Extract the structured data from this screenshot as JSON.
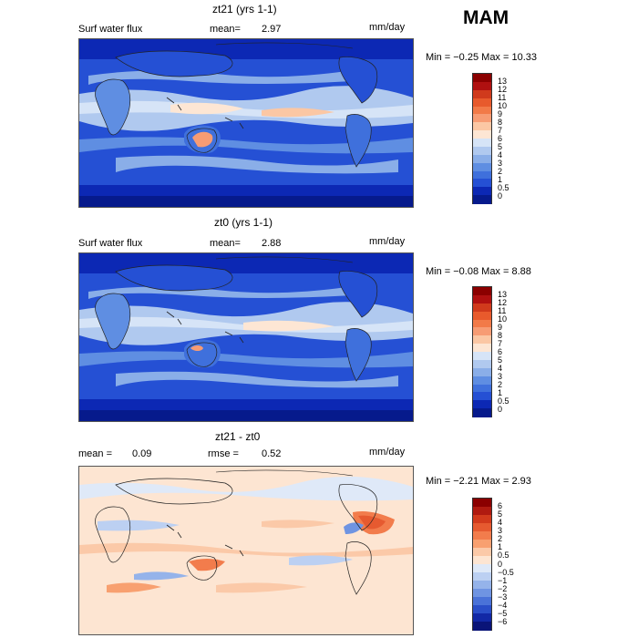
{
  "season": "MAM",
  "panels": [
    {
      "title": "zt21 (yrs 1-1)",
      "left_label": "Surf water flux",
      "mid_label": "mean=",
      "mid_value": "2.97",
      "units": "mm/day",
      "minmax": "Min =  −0.25 Max =   10.33",
      "colorbar": {
        "labels": [
          "13",
          "12",
          "11",
          "10",
          "9",
          "8",
          "7",
          "6",
          "5",
          "4",
          "3",
          "2",
          "1",
          "0.5",
          "0"
        ],
        "colors": [
          "#8b0000",
          "#b01010",
          "#d03a1c",
          "#e85a2c",
          "#f27a48",
          "#f79c74",
          "#fbc7a4",
          "#fde6d4",
          "#d6e4f7",
          "#b0c9ef",
          "#8aaee8",
          "#5f8ee2",
          "#3f70dc",
          "#2550d4",
          "#0c28b4",
          "#061a8c"
        ]
      },
      "map_theme": "wet"
    },
    {
      "title": "zt0 (yrs 1-1)",
      "left_label": "Surf water flux",
      "mid_label": "mean=",
      "mid_value": "2.88",
      "units": "mm/day",
      "minmax": "Min =  −0.08 Max =    8.88",
      "colorbar": {
        "labels": [
          "13",
          "12",
          "11",
          "10",
          "9",
          "8",
          "7",
          "6",
          "5",
          "4",
          "3",
          "2",
          "1",
          "0.5",
          "0"
        ],
        "colors": [
          "#8b0000",
          "#b01010",
          "#d03a1c",
          "#e85a2c",
          "#f27a48",
          "#f79c74",
          "#fbc7a4",
          "#fde6d4",
          "#d6e4f7",
          "#b0c9ef",
          "#8aaee8",
          "#5f8ee2",
          "#3f70dc",
          "#2550d4",
          "#0c28b4",
          "#061a8c"
        ]
      },
      "map_theme": "wet"
    },
    {
      "title": "zt21 - zt0",
      "left_label": "mean =",
      "left_value": "0.09",
      "mid_label": "rmse =",
      "mid_value": "0.52",
      "units": "mm/day",
      "minmax": "Min =  −2.21 Max =    2.93",
      "colorbar": {
        "labels": [
          "6",
          "5",
          "4",
          "3",
          "2",
          "1",
          "0.5",
          "0",
          "−0.5",
          "−1",
          "−2",
          "−3",
          "−4",
          "−5",
          "−6"
        ],
        "colors": [
          "#8b0000",
          "#b01a10",
          "#d23a1c",
          "#e65a30",
          "#f27c4c",
          "#f8a070",
          "#fbc9a8",
          "#fde5d2",
          "#dfe9f8",
          "#bcd0f2",
          "#95b3ea",
          "#6f94e2",
          "#4a72d8",
          "#2a4ec8",
          "#1228a6",
          "#0a1478"
        ]
      },
      "map_theme": "diff"
    }
  ]
}
